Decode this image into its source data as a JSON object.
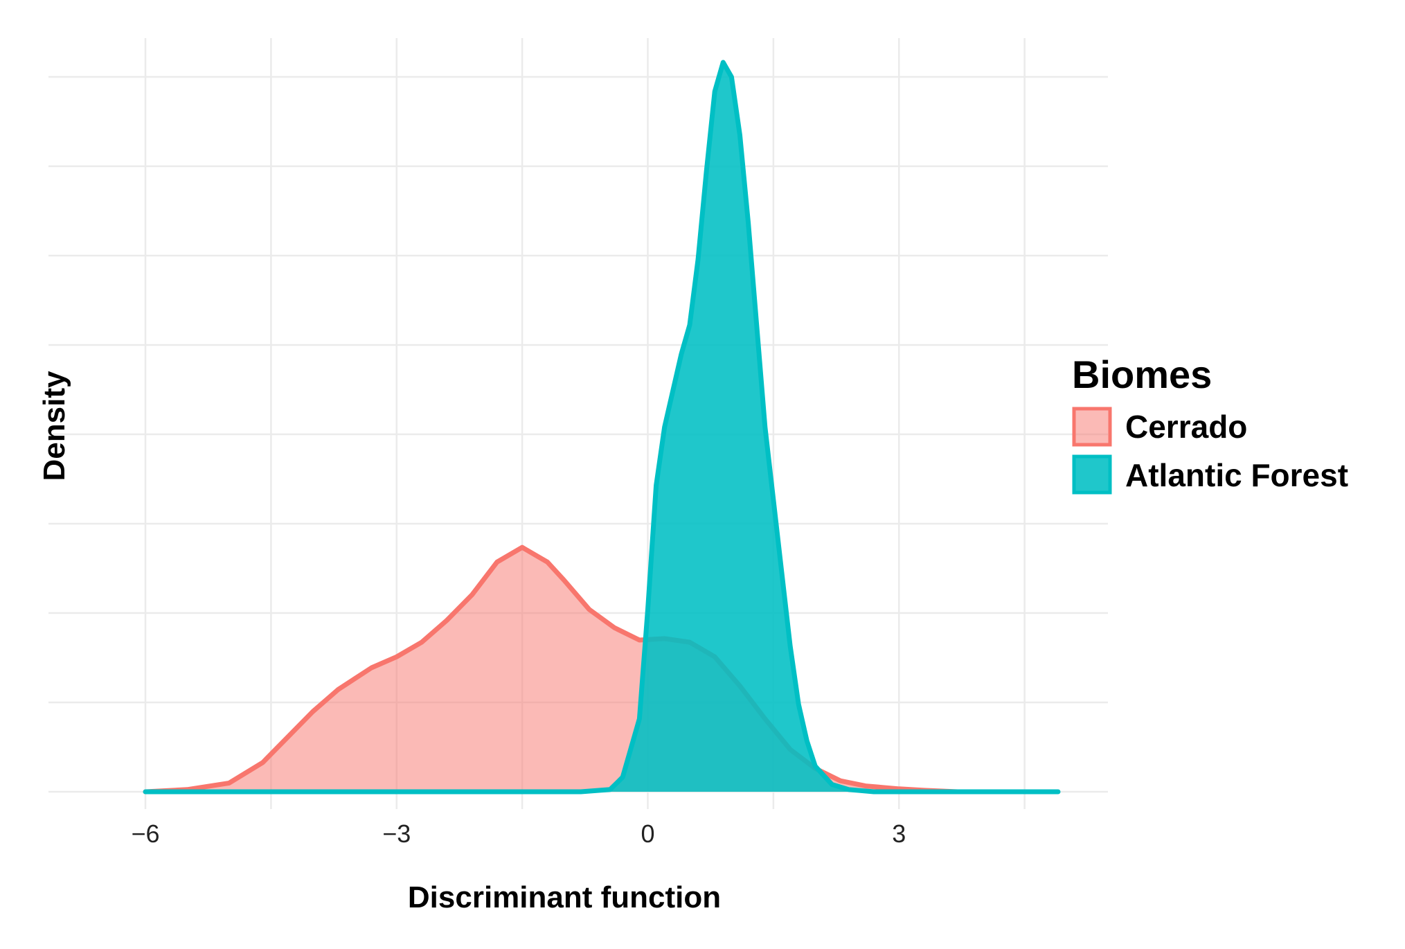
{
  "chart_data": {
    "type": "area",
    "title": "",
    "xlabel": "Discriminant function",
    "ylabel": "Density",
    "xlim": [
      -6.0,
      4.9
    ],
    "ylim": [
      0,
      1.0
    ],
    "x_ticks": [
      -6,
      -3,
      0,
      3
    ],
    "x_tick_labels": [
      "−6",
      "−3",
      "0",
      "3"
    ],
    "y_ticks_visible": false,
    "grid": true,
    "legend": {
      "title": "Biomes",
      "placement": "right",
      "entries": [
        "Cerrado",
        "Atlantic Forest"
      ]
    },
    "series": [
      {
        "name": "Cerrado",
        "fill": "#F8766D",
        "fill_opacity": 0.5,
        "x": [
          -6.0,
          -5.5,
          -5.0,
          -4.6,
          -4.3,
          -4.0,
          -3.7,
          -3.3,
          -3.0,
          -2.7,
          -2.4,
          -2.1,
          -1.8,
          -1.5,
          -1.2,
          -1.0,
          -0.7,
          -0.4,
          -0.1,
          0.2,
          0.5,
          0.8,
          1.1,
          1.4,
          1.7,
          2.0,
          2.3,
          2.6,
          3.0,
          3.3,
          3.7
        ],
        "y": [
          0.0,
          0.003,
          0.012,
          0.04,
          0.075,
          0.11,
          0.14,
          0.17,
          0.185,
          0.205,
          0.235,
          0.27,
          0.315,
          0.335,
          0.315,
          0.29,
          0.25,
          0.225,
          0.208,
          0.21,
          0.205,
          0.185,
          0.145,
          0.1,
          0.058,
          0.032,
          0.015,
          0.008,
          0.004,
          0.002,
          0.0
        ]
      },
      {
        "name": "Atlantic Forest",
        "fill": "#00BFC4",
        "fill_opacity": 0.88,
        "x": [
          -6.0,
          -0.8,
          -0.45,
          -0.3,
          -0.1,
          0.0,
          0.1,
          0.2,
          0.3,
          0.4,
          0.5,
          0.6,
          0.7,
          0.8,
          0.9,
          1.0,
          1.1,
          1.2,
          1.3,
          1.4,
          1.5,
          1.6,
          1.7,
          1.8,
          1.9,
          2.0,
          2.2,
          2.4,
          2.7,
          4.9
        ],
        "y": [
          0.0,
          0.0,
          0.003,
          0.02,
          0.1,
          0.25,
          0.42,
          0.5,
          0.55,
          0.6,
          0.64,
          0.73,
          0.85,
          0.96,
          1.0,
          0.98,
          0.9,
          0.78,
          0.64,
          0.5,
          0.4,
          0.3,
          0.2,
          0.12,
          0.07,
          0.035,
          0.01,
          0.003,
          0.0,
          0.0
        ]
      }
    ]
  }
}
